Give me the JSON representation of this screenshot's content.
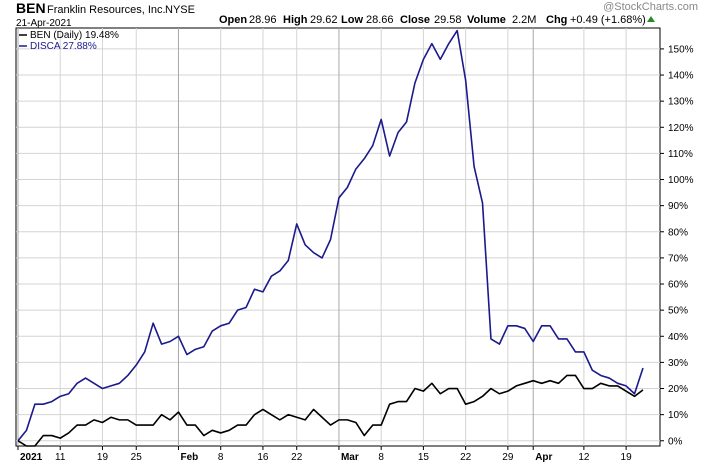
{
  "header": {
    "ticker": "BEN",
    "company": "Franklin Resources, Inc.",
    "exchange": "NYSE",
    "date": "21-Apr-2021",
    "open_label": "Open",
    "open_value": "28.96",
    "high_label": "High",
    "high_value": "29.62",
    "low_label": "Low",
    "low_value": "28.66",
    "close_label": "Close",
    "close_value": "29.58",
    "volume_label": "Volume",
    "volume_value": "2.2M",
    "chg_label": "Chg",
    "chg_value": "+0.49 (+1.68%)",
    "watermark": "@StockCharts.com"
  },
  "colors": {
    "ben": "#000000",
    "disca": "#1a1a8c",
    "grid": "#d4d4d4",
    "axis": "#000000",
    "up_arrow": "#2a8a2a"
  },
  "chart_data": {
    "type": "line",
    "y_unit": "%",
    "ylim": [
      -2,
      158
    ],
    "y_ticks": [
      0,
      10,
      20,
      30,
      40,
      50,
      60,
      70,
      80,
      90,
      100,
      110,
      120,
      130,
      140,
      150
    ],
    "y_tick_labels": [
      "0%",
      "10%",
      "20%",
      "30%",
      "40%",
      "50%",
      "60%",
      "70%",
      "80%",
      "90%",
      "100%",
      "110%",
      "120%",
      "130%",
      "140%",
      "150%"
    ],
    "x_ticks": [
      {
        "date": "2021-01-04",
        "label": "2021",
        "bold": true
      },
      {
        "date": "2021-01-11",
        "label": "11",
        "bold": false
      },
      {
        "date": "2021-01-19",
        "label": "19",
        "bold": false
      },
      {
        "date": "2021-01-25",
        "label": "25",
        "bold": false
      },
      {
        "date": "2021-02-01",
        "label": "Feb",
        "bold": true
      },
      {
        "date": "2021-02-08",
        "label": "8",
        "bold": false
      },
      {
        "date": "2021-02-16",
        "label": "16",
        "bold": false
      },
      {
        "date": "2021-02-22",
        "label": "22",
        "bold": false
      },
      {
        "date": "2021-03-01",
        "label": "Mar",
        "bold": true
      },
      {
        "date": "2021-03-08",
        "label": "8",
        "bold": false
      },
      {
        "date": "2021-03-15",
        "label": "15",
        "bold": false
      },
      {
        "date": "2021-03-22",
        "label": "22",
        "bold": false
      },
      {
        "date": "2021-03-29",
        "label": "29",
        "bold": false
      },
      {
        "date": "2021-04-01",
        "label": "Apr",
        "bold": true
      },
      {
        "date": "2021-04-12",
        "label": "12",
        "bold": false
      },
      {
        "date": "2021-04-19",
        "label": "19",
        "bold": false
      }
    ],
    "x": [
      "2021-01-04",
      "2021-01-05",
      "2021-01-06",
      "2021-01-07",
      "2021-01-08",
      "2021-01-11",
      "2021-01-12",
      "2021-01-13",
      "2021-01-14",
      "2021-01-15",
      "2021-01-19",
      "2021-01-20",
      "2021-01-21",
      "2021-01-22",
      "2021-01-25",
      "2021-01-26",
      "2021-01-27",
      "2021-01-28",
      "2021-01-29",
      "2021-02-01",
      "2021-02-02",
      "2021-02-03",
      "2021-02-04",
      "2021-02-05",
      "2021-02-08",
      "2021-02-09",
      "2021-02-10",
      "2021-02-11",
      "2021-02-12",
      "2021-02-16",
      "2021-02-17",
      "2021-02-18",
      "2021-02-19",
      "2021-02-22",
      "2021-02-23",
      "2021-02-24",
      "2021-02-25",
      "2021-02-26",
      "2021-03-01",
      "2021-03-02",
      "2021-03-03",
      "2021-03-04",
      "2021-03-05",
      "2021-03-08",
      "2021-03-09",
      "2021-03-10",
      "2021-03-11",
      "2021-03-12",
      "2021-03-15",
      "2021-03-16",
      "2021-03-17",
      "2021-03-18",
      "2021-03-19",
      "2021-03-22",
      "2021-03-23",
      "2021-03-24",
      "2021-03-25",
      "2021-03-26",
      "2021-03-29",
      "2021-03-30",
      "2021-03-31",
      "2021-04-01",
      "2021-04-05",
      "2021-04-06",
      "2021-04-07",
      "2021-04-08",
      "2021-04-09",
      "2021-04-12",
      "2021-04-13",
      "2021-04-14",
      "2021-04-15",
      "2021-04-16",
      "2021-04-19",
      "2021-04-20",
      "2021-04-21"
    ],
    "series": [
      {
        "name": "BEN (Daily) 19.48%",
        "color": "#000000",
        "values": [
          0,
          -2,
          -2,
          2,
          2,
          1,
          3,
          6,
          6,
          8,
          7,
          9,
          8,
          8,
          6,
          6,
          6,
          10,
          8,
          11,
          6,
          6,
          2,
          4,
          3,
          4,
          6,
          6,
          10,
          12,
          10,
          8,
          10,
          9,
          8,
          12,
          9,
          6,
          8,
          8,
          7,
          2,
          6,
          6,
          14,
          15,
          15,
          20,
          19,
          22,
          18,
          20,
          20,
          14,
          15,
          17,
          20,
          18,
          19,
          21,
          22,
          23,
          22,
          23,
          22,
          25,
          25,
          20,
          20,
          22,
          21,
          21,
          19,
          17,
          19.48
        ],
        "label": "BEN (Daily) 19.48%"
      },
      {
        "name": "DISCA 27.88%",
        "color": "#1a1a8c",
        "values": [
          0,
          4,
          14,
          14,
          15,
          17,
          18,
          22,
          24,
          22,
          20,
          21,
          22,
          25,
          29,
          34,
          45,
          37,
          38,
          40,
          33,
          35,
          36,
          42,
          44,
          45,
          50,
          51,
          58,
          57,
          63,
          65,
          69,
          83,
          75,
          72,
          70,
          77,
          93,
          97,
          104,
          108,
          113,
          123,
          109,
          118,
          122,
          137,
          146,
          152,
          146,
          152,
          157,
          138,
          105,
          91,
          39,
          37,
          44,
          44,
          43,
          38,
          44,
          44,
          39,
          39,
          34,
          34,
          27,
          25,
          24,
          22,
          21,
          18,
          27.88
        ],
        "label": "DISCA 27.88%"
      }
    ],
    "grid": true,
    "legend_position": "top-left"
  }
}
